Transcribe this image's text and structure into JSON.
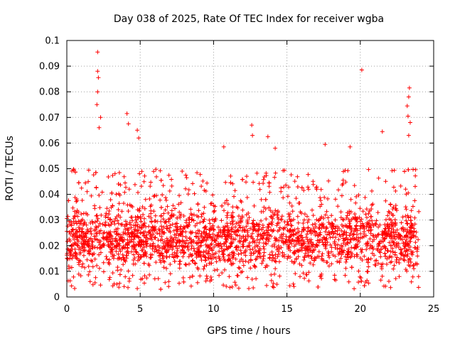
{
  "chart_data": {
    "type": "scatter",
    "title": "Day 038 of 2025, Rate Of TEC Index for receiver wgba",
    "xlabel": "GPS time / hours",
    "ylabel": "ROTI / TECUs",
    "xlim": [
      0,
      25
    ],
    "ylim": [
      0,
      0.1
    ],
    "xticks": [
      0,
      5,
      10,
      15,
      20,
      25
    ],
    "yticks": [
      0,
      0.01,
      0.02,
      0.03,
      0.04,
      0.05,
      0.06,
      0.07,
      0.08,
      0.09,
      0.1
    ],
    "xtick_labels": [
      "0",
      "5",
      "10",
      "15",
      "20",
      "25"
    ],
    "ytick_labels": [
      "0",
      "0.01",
      "0.02",
      "0.03",
      "0.04",
      "0.05",
      "0.06",
      "0.07",
      "0.08",
      "0.09",
      "0.1"
    ],
    "grid": true,
    "marker": "+",
    "color": "#ff0000",
    "series_description": "Dense cloud of ROTI samples, 0 to 24 h; bulk between 0.005 and 0.035 TECU/min",
    "bulk_range": [
      0.005,
      0.035
    ],
    "x_span": [
      0,
      24
    ],
    "notable_points": [
      {
        "x": 2.1,
        "y": 0.0955
      },
      {
        "x": 2.1,
        "y": 0.088
      },
      {
        "x": 2.15,
        "y": 0.0855
      },
      {
        "x": 2.1,
        "y": 0.08
      },
      {
        "x": 2.05,
        "y": 0.075
      },
      {
        "x": 2.3,
        "y": 0.07
      },
      {
        "x": 2.2,
        "y": 0.066
      },
      {
        "x": 4.1,
        "y": 0.0715
      },
      {
        "x": 4.2,
        "y": 0.0675
      },
      {
        "x": 4.8,
        "y": 0.065
      },
      {
        "x": 4.9,
        "y": 0.062
      },
      {
        "x": 12.6,
        "y": 0.067
      },
      {
        "x": 12.65,
        "y": 0.063
      },
      {
        "x": 13.7,
        "y": 0.0625
      },
      {
        "x": 14.2,
        "y": 0.058
      },
      {
        "x": 20.1,
        "y": 0.0885
      },
      {
        "x": 23.35,
        "y": 0.0815
      },
      {
        "x": 23.3,
        "y": 0.078
      },
      {
        "x": 23.2,
        "y": 0.0745
      },
      {
        "x": 23.25,
        "y": 0.0705
      },
      {
        "x": 23.4,
        "y": 0.068
      },
      {
        "x": 23.3,
        "y": 0.063
      },
      {
        "x": 21.5,
        "y": 0.0645
      },
      {
        "x": 17.6,
        "y": 0.0595
      },
      {
        "x": 19.3,
        "y": 0.0585
      },
      {
        "x": 10.7,
        "y": 0.0585
      }
    ]
  }
}
